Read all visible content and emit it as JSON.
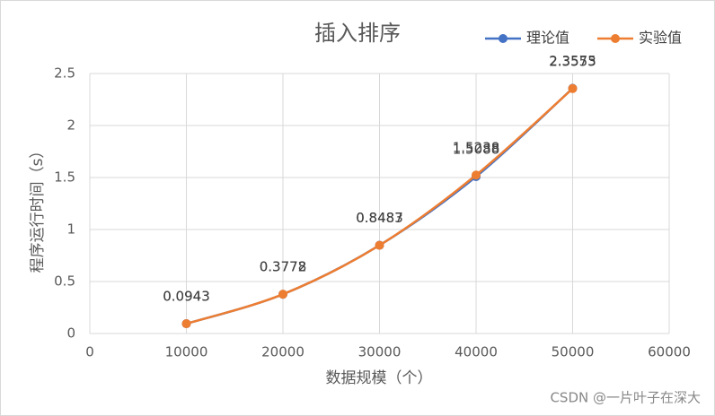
{
  "chart_data": {
    "type": "line",
    "title": "插入排序",
    "xlabel": "数据规模（个）",
    "ylabel": "程序运行时间（s）",
    "x": [
      10000,
      20000,
      30000,
      40000,
      50000
    ],
    "series": [
      {
        "name": "理论值",
        "color": "#4472c4",
        "values": [
          0.0943,
          0.3772,
          0.8487,
          1.5088,
          2.3575
        ]
      },
      {
        "name": "实验值",
        "color": "#ed7d31",
        "values": [
          0.0943,
          0.3778,
          0.8483,
          1.5238,
          2.3553
        ]
      }
    ],
    "xlim": [
      0,
      60000
    ],
    "xticks": [
      0,
      10000,
      20000,
      30000,
      40000,
      50000,
      60000
    ],
    "ylim": [
      0,
      2.5
    ],
    "yticks": [
      0,
      0.5,
      1,
      1.5,
      2,
      2.5
    ],
    "grid": true,
    "legend": "top-right"
  },
  "watermark": "CSDN @一片叶子在深大"
}
